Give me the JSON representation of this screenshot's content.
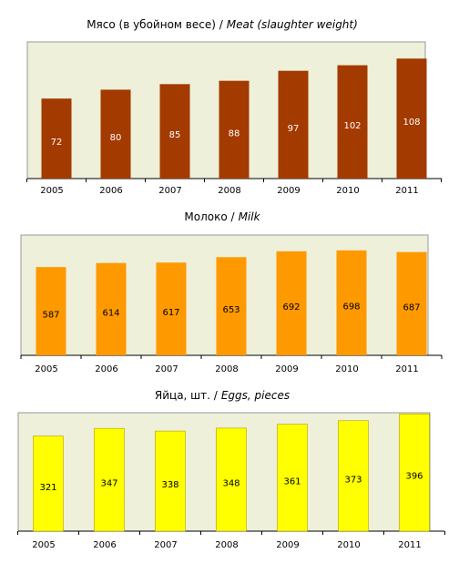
{
  "chart_data": [
    {
      "type": "bar",
      "title": "Мясо (в убойном весе) /",
      "title_en": "Meat (slaughter weight)",
      "categories": [
        "2005",
        "2006",
        "2007",
        "2008",
        "2009",
        "2010",
        "2011"
      ],
      "values": [
        72,
        80,
        85,
        88,
        97,
        102,
        108
      ],
      "color": "#a33a00",
      "label_color": "#ffffff",
      "ylim": [
        0,
        123
      ]
    },
    {
      "type": "bar",
      "title": "Молоко /",
      "title_en": "Milk",
      "categories": [
        "2005",
        "2006",
        "2007",
        "2008",
        "2009",
        "2010",
        "2011"
      ],
      "values": [
        587,
        614,
        617,
        653,
        692,
        698,
        687
      ],
      "color": "#ff9900",
      "label_color": "#000000",
      "ylim": [
        0,
        800
      ]
    },
    {
      "type": "bar",
      "title": "Яйца, шт. /",
      "title_en": "Eggs, pieces",
      "categories": [
        "2005",
        "2006",
        "2007",
        "2008",
        "2009",
        "2010",
        "2011"
      ],
      "values": [
        321,
        347,
        338,
        348,
        361,
        373,
        396
      ],
      "color": "#ffff00",
      "label_color": "#000000",
      "ylim": [
        0,
        400
      ]
    }
  ]
}
